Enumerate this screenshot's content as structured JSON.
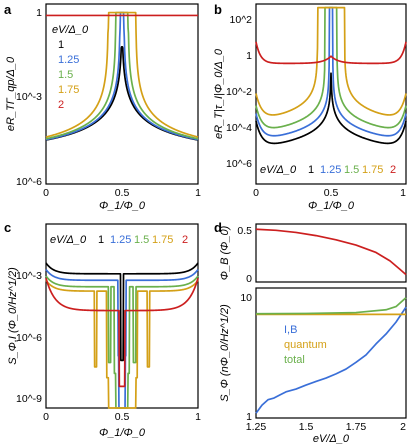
{
  "colors": {
    "c1": "#000000",
    "c125": "#3a6fd8",
    "c15": "#6ab04c",
    "c175": "#d4a017",
    "c2": "#cc1f1f"
  },
  "panels": {
    "a": {
      "label": "a",
      "ylabel": "eR_TΓ_qp/Δ_0",
      "xlabel": "Φ_1/Φ_0",
      "yticks": [
        "1",
        "10^-3",
        "10^-6"
      ],
      "xticks": [
        "0",
        "0.5",
        "1"
      ],
      "legend_title": "eV/Δ_0",
      "legend": [
        "1",
        "1.25",
        "1.5",
        "1.75",
        "2"
      ]
    },
    "b": {
      "label": "b",
      "ylabel": "eR_T|τ_I|Φ_0/Δ_0",
      "xlabel": "Φ_1/Φ_0",
      "yticks": [
        "10^2",
        "1",
        "10^-2",
        "10^-4",
        "10^-6"
      ],
      "xticks": [
        "0",
        "0.5",
        "1"
      ],
      "legend_title": "eV/Δ_0",
      "legend": [
        "1",
        "1.25",
        "1.5",
        "1.75",
        "2"
      ]
    },
    "c": {
      "label": "c",
      "ylabel": "S_Φ,I (Φ_0/Hz^1/2)",
      "xlabel": "Φ_1/Φ_0",
      "yticks": [
        "10^-3",
        "10^-6",
        "10^-9"
      ],
      "xticks": [
        "0",
        "0.5",
        "1"
      ],
      "legend_title": "eV/Δ_0",
      "legend": [
        "1",
        "1.25",
        "1.5",
        "1.75",
        "2"
      ]
    },
    "d_top": {
      "label": "d",
      "ylabel": "Φ_B (Φ_0)",
      "yticks": [
        "0.5",
        "0"
      ]
    },
    "d_bottom": {
      "ylabel": "S_Φ (nΦ_0/Hz^1/2)",
      "xlabel": "eV/Δ_0",
      "yticks": [
        "10",
        "1"
      ],
      "xticks": [
        "1.25",
        "1.5",
        "1.75",
        "2"
      ],
      "legend": [
        "I,B",
        "quantum",
        "total"
      ]
    }
  },
  "chart_data": [
    {
      "type": "line",
      "panel": "a",
      "xlabel": "Φ1/Φ0",
      "ylabel": "eR_TΓqp/Δ0",
      "xlim": [
        0,
        1
      ],
      "ylim_log10": [
        -6,
        0.3
      ],
      "yscale": "log",
      "series": [
        {
          "name": "1",
          "color": "c1",
          "kind": "a",
          "base": -5.3,
          "amp": 0.8,
          "w": 0.0,
          "cap": -1.2
        },
        {
          "name": "1.25",
          "color": "c125",
          "kind": "a",
          "base": -5.3,
          "amp": 0.8,
          "w": 0.012,
          "cap": 0.0
        },
        {
          "name": "1.5",
          "color": "c15",
          "kind": "a",
          "base": -5.3,
          "amp": 0.8,
          "w": 0.04,
          "cap": 0.0
        },
        {
          "name": "1.75",
          "color": "c175",
          "kind": "a",
          "base": -5.3,
          "amp": 0.8,
          "w": 0.09,
          "cap": 0.0
        },
        {
          "name": "2",
          "color": "c2",
          "kind": "flat",
          "base": -0.1
        }
      ]
    },
    {
      "type": "line",
      "panel": "b",
      "xlabel": "Φ1/Φ0",
      "ylabel": "eR_T|τI|Φ0/Δ0",
      "xlim": [
        0,
        1
      ],
      "ylim_log10": [
        -7,
        3
      ],
      "yscale": "log",
      "series": [
        {
          "name": "1",
          "color": "c1",
          "kind": "b",
          "base": -5.0,
          "w": 0.0,
          "cap": -0.3
        },
        {
          "name": "1.25",
          "color": "c125",
          "kind": "b",
          "base": -4.6,
          "w": 0.012,
          "cap": 2.8
        },
        {
          "name": "1.5",
          "color": "c15",
          "kind": "b",
          "base": -4.2,
          "w": 0.04,
          "cap": 2.8
        },
        {
          "name": "1.75",
          "color": "c175",
          "kind": "b",
          "base": -3.6,
          "w": 0.09,
          "cap": 2.8
        },
        {
          "name": "2",
          "color": "c2",
          "kind": "b2",
          "base": 0.0,
          "w": 0.0,
          "cap": 0.4
        }
      ]
    },
    {
      "type": "line",
      "panel": "c",
      "xlabel": "Φ1/Φ0",
      "ylabel": "SΦ,I",
      "xlim": [
        0,
        1
      ],
      "ylim_log10": [
        -9.5,
        -1
      ],
      "yscale": "log",
      "series": [
        {
          "name": "1",
          "color": "c1",
          "kind": "c",
          "base": -3.3,
          "w": 0.0,
          "dip": 0.0
        },
        {
          "name": "1.25",
          "color": "c125",
          "kind": "c",
          "base": -3.6,
          "w": 0.012,
          "dip": 0.012
        },
        {
          "name": "1.5",
          "color": "c15",
          "kind": "c",
          "base": -3.9,
          "w": 0.04,
          "dip": 0.07
        },
        {
          "name": "1.75",
          "color": "c175",
          "kind": "c",
          "base": -4.1,
          "w": 0.09,
          "dip": 0.14
        },
        {
          "name": "2",
          "color": "c2",
          "kind": "c2",
          "base": -5.0,
          "w": 0.0,
          "dip": 0.0
        }
      ]
    },
    {
      "type": "line",
      "panel": "d_top",
      "ylabel": "ΦB (Φ0)",
      "xlim": [
        1.25,
        2
      ],
      "ylim": [
        0,
        0.55
      ],
      "series": [
        {
          "color": "c2",
          "x": [
            1.25,
            1.35,
            1.45,
            1.55,
            1.65,
            1.75,
            1.85,
            1.92,
            1.97,
            2.0
          ],
          "y": [
            0.5,
            0.49,
            0.47,
            0.44,
            0.4,
            0.35,
            0.28,
            0.2,
            0.12,
            0.07
          ]
        }
      ]
    },
    {
      "type": "line",
      "panel": "d_bottom",
      "xlabel": "eV/Δ0",
      "ylabel": "SΦ (nΦ0/Hz^1/2)",
      "xlim": [
        1.25,
        2
      ],
      "ylim": [
        1,
        14
      ],
      "yscale": "log",
      "series": [
        {
          "name": "I,B",
          "color": "c125",
          "x": [
            1.25,
            1.28,
            1.31,
            1.34,
            1.37,
            1.4,
            1.45,
            1.5,
            1.55,
            1.6,
            1.65,
            1.7,
            1.75,
            1.8,
            1.85,
            1.9,
            1.95,
            2.0
          ],
          "y": [
            1.1,
            1.3,
            1.45,
            1.5,
            1.6,
            1.7,
            1.8,
            1.95,
            2.1,
            2.25,
            2.45,
            2.7,
            3.1,
            3.6,
            4.5,
            5.5,
            7.0,
            9.5
          ]
        },
        {
          "name": "quantum",
          "color": "c175",
          "x": [
            1.25,
            1.5,
            1.75,
            2.0
          ],
          "y": [
            8.2,
            8.2,
            8.2,
            8.2
          ]
        },
        {
          "name": "total",
          "color": "c15",
          "x": [
            1.25,
            1.5,
            1.75,
            1.9,
            1.95,
            2.0
          ],
          "y": [
            8.3,
            8.35,
            8.5,
            9.0,
            9.6,
            11.5
          ]
        }
      ]
    }
  ]
}
